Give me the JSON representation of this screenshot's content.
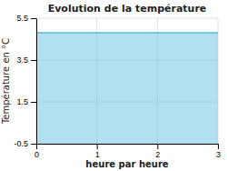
{
  "chart_data": {
    "type": "area",
    "title": "Evolution de la température",
    "xlabel": "heure par heure",
    "ylabel": "Température en °C",
    "x": [
      0,
      3
    ],
    "values": [
      4.8,
      4.8
    ],
    "color": "#55bbdd",
    "xlim": [
      0,
      3
    ],
    "ylim": [
      -0.5,
      5.5
    ],
    "xticks": [
      0,
      1,
      2,
      3
    ],
    "yticks": [
      -0.5,
      1.5,
      3.5,
      5.5
    ],
    "grid": true
  }
}
